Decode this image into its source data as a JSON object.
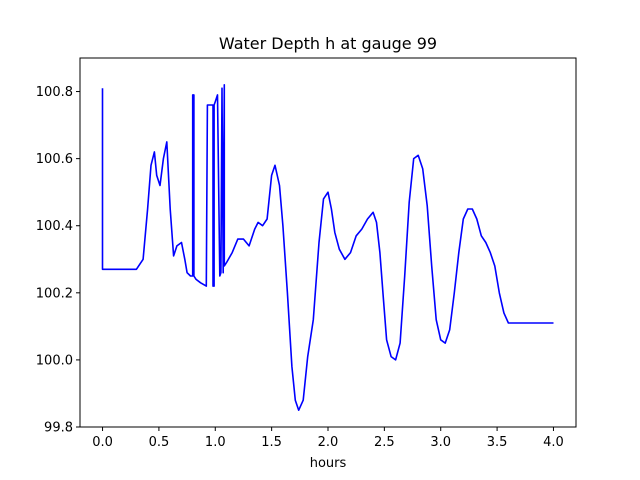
{
  "chart_data": {
    "type": "line",
    "title": "Water Depth h at gauge 99",
    "xlabel": "hours",
    "ylabel": "",
    "xlim": [
      -0.2,
      4.2
    ],
    "ylim": [
      99.8,
      100.9
    ],
    "xticks": [
      0.0,
      0.5,
      1.0,
      1.5,
      2.0,
      2.5,
      3.0,
      3.5,
      4.0
    ],
    "xtick_labels": [
      "0.0",
      "0.5",
      "1.0",
      "1.5",
      "2.0",
      "2.5",
      "3.0",
      "3.5",
      "4.0"
    ],
    "yticks": [
      99.8,
      100.0,
      100.2,
      100.4,
      100.6,
      100.8
    ],
    "ytick_labels": [
      "99.8",
      "100.0",
      "100.2",
      "100.4",
      "100.6",
      "100.8"
    ],
    "grid": false,
    "legend": false,
    "line_color": "#0000ff",
    "series": [
      {
        "x": [
          0.0,
          0.0,
          0.0,
          0.1,
          0.2,
          0.3,
          0.36,
          0.4,
          0.43,
          0.46,
          0.48,
          0.51,
          0.54,
          0.57,
          0.6,
          0.63,
          0.66,
          0.7,
          0.73,
          0.75,
          0.78,
          0.8,
          0.8,
          0.81,
          0.81,
          0.83,
          0.87,
          0.92,
          0.93,
          0.93,
          0.98,
          0.98,
          0.99,
          0.99,
          1.0,
          1.01,
          1.02,
          1.04,
          1.05,
          1.06,
          1.07,
          1.08,
          1.08,
          1.1,
          1.15,
          1.2,
          1.25,
          1.3,
          1.35,
          1.38,
          1.42,
          1.46,
          1.5,
          1.53,
          1.57,
          1.6,
          1.64,
          1.68,
          1.71,
          1.74,
          1.78,
          1.82,
          1.87,
          1.92,
          1.96,
          2.0,
          2.03,
          2.06,
          2.1,
          2.15,
          2.2,
          2.25,
          2.3,
          2.35,
          2.4,
          2.43,
          2.46,
          2.49,
          2.52,
          2.56,
          2.6,
          2.64,
          2.68,
          2.72,
          2.76,
          2.8,
          2.84,
          2.88,
          2.92,
          2.96,
          3.0,
          3.04,
          3.08,
          3.12,
          3.16,
          3.2,
          3.24,
          3.28,
          3.32,
          3.36,
          3.4,
          3.44,
          3.48,
          3.52,
          3.56,
          3.6,
          3.65,
          3.7,
          3.75,
          3.8,
          3.85,
          3.9,
          3.95,
          3.98,
          4.0
        ],
        "y": [
          100.81,
          100.27,
          100.27,
          100.27,
          100.27,
          100.27,
          100.3,
          100.45,
          100.58,
          100.62,
          100.55,
          100.52,
          100.6,
          100.65,
          100.45,
          100.31,
          100.34,
          100.35,
          100.3,
          100.26,
          100.25,
          100.25,
          100.79,
          100.79,
          100.25,
          100.24,
          100.23,
          100.22,
          100.76,
          100.76,
          100.76,
          100.22,
          100.22,
          100.76,
          100.77,
          100.78,
          100.79,
          100.25,
          100.26,
          100.81,
          100.26,
          100.82,
          100.28,
          100.29,
          100.32,
          100.36,
          100.36,
          100.34,
          100.39,
          100.41,
          100.4,
          100.42,
          100.55,
          100.58,
          100.52,
          100.4,
          100.2,
          99.98,
          99.88,
          99.85,
          99.88,
          100.01,
          100.12,
          100.35,
          100.48,
          100.5,
          100.45,
          100.38,
          100.33,
          100.3,
          100.32,
          100.37,
          100.39,
          100.42,
          100.44,
          100.41,
          100.32,
          100.19,
          100.06,
          100.01,
          100.0,
          100.05,
          100.25,
          100.47,
          100.6,
          100.61,
          100.57,
          100.46,
          100.28,
          100.12,
          100.06,
          100.05,
          100.09,
          100.2,
          100.32,
          100.42,
          100.45,
          100.45,
          100.42,
          100.37,
          100.35,
          100.32,
          100.28,
          100.2,
          100.14,
          100.11,
          100.11,
          100.11,
          100.11,
          100.11,
          100.11,
          100.11,
          100.11,
          100.11,
          100.11
        ]
      }
    ]
  }
}
